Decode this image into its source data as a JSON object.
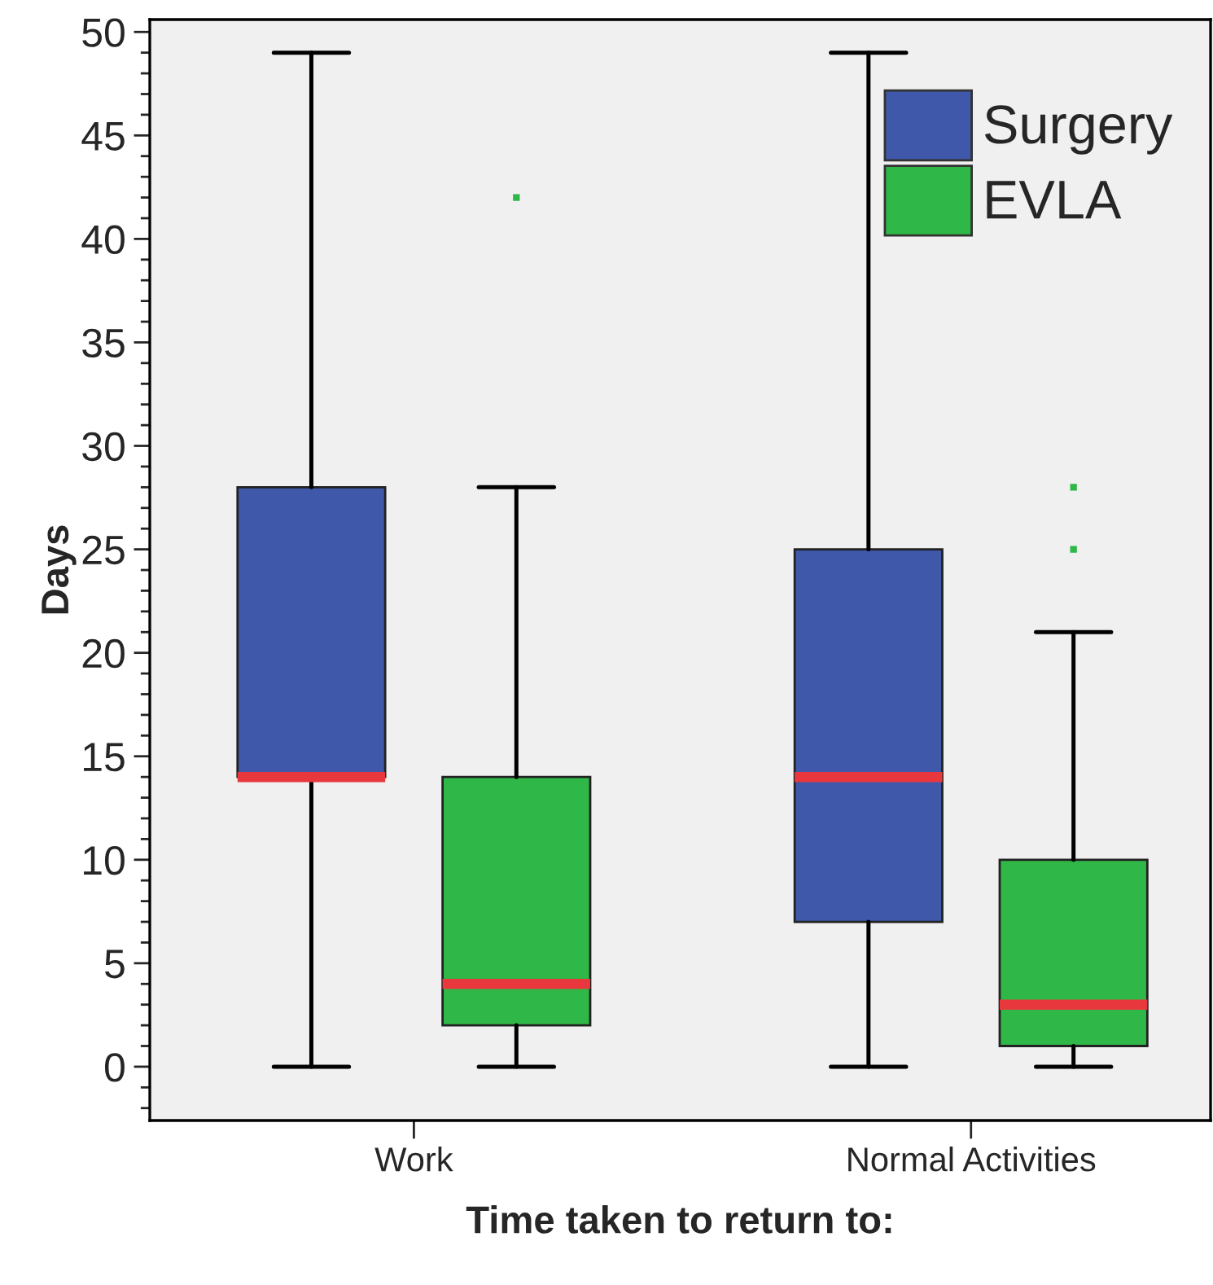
{
  "chart_data": {
    "type": "box",
    "xlabel": "Time taken to return to:",
    "ylabel": "Days",
    "categories": [
      "Work",
      "Normal Activities"
    ],
    "series": [
      {
        "name": "Surgery",
        "color": "#3f58aa",
        "boxes": [
          {
            "low": 0,
            "q1": 14,
            "median": 14,
            "q3": 28,
            "high": 49
          },
          {
            "low": 0,
            "q1": 7,
            "median": 14,
            "q3": 25,
            "high": 49
          }
        ]
      },
      {
        "name": "EVLA",
        "color": "#2fb847",
        "boxes": [
          {
            "low": 0,
            "q1": 2,
            "median": 4,
            "q3": 14,
            "high": 28,
            "outliers": [
              42
            ]
          },
          {
            "low": 0,
            "q1": 1,
            "median": 3,
            "q3": 10,
            "high": 21,
            "outliers": [
              28,
              25
            ]
          }
        ]
      }
    ],
    "ylim": [
      -2.6,
      50.6
    ],
    "yticks": [
      0,
      5,
      10,
      15,
      20,
      25,
      30,
      35,
      40,
      45,
      50
    ],
    "grid": false,
    "legend": "top right"
  }
}
